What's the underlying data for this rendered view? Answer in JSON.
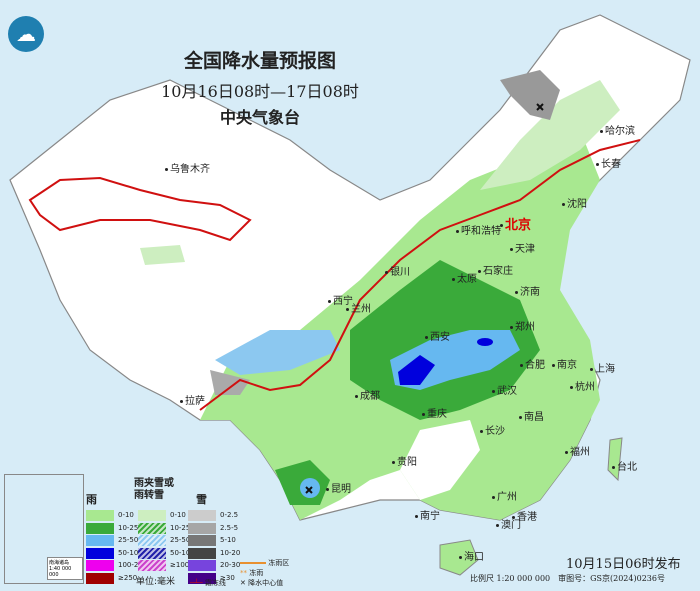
{
  "header": {
    "title": "全国降水量预报图",
    "period": "10月16日08时—17日08时",
    "agency": "中央气象台"
  },
  "logo": {
    "icon": "cma-logo-icon"
  },
  "cities": [
    {
      "name": "乌鲁木齐",
      "capital": false
    },
    {
      "name": "哈尔滨",
      "capital": false
    },
    {
      "name": "长春",
      "capital": false
    },
    {
      "name": "沈阳",
      "capital": false
    },
    {
      "name": "北京",
      "capital": true
    },
    {
      "name": "天津",
      "capital": false
    },
    {
      "name": "呼和浩特",
      "capital": false
    },
    {
      "name": "石家庄",
      "capital": false
    },
    {
      "name": "太原",
      "capital": false
    },
    {
      "name": "银川",
      "capital": false
    },
    {
      "name": "西宁",
      "capital": false
    },
    {
      "name": "兰州",
      "capital": false
    },
    {
      "name": "济南",
      "capital": false
    },
    {
      "name": "郑州",
      "capital": false
    },
    {
      "name": "西安",
      "capital": false
    },
    {
      "name": "南京",
      "capital": false
    },
    {
      "name": "合肥",
      "capital": false
    },
    {
      "name": "上海",
      "capital": false
    },
    {
      "name": "杭州",
      "capital": false
    },
    {
      "name": "武汉",
      "capital": false
    },
    {
      "name": "成都",
      "capital": false
    },
    {
      "name": "重庆",
      "capital": false
    },
    {
      "name": "长沙",
      "capital": false
    },
    {
      "name": "南昌",
      "capital": false
    },
    {
      "name": "拉萨",
      "capital": false
    },
    {
      "name": "贵阳",
      "capital": false
    },
    {
      "name": "昆明",
      "capital": false
    },
    {
      "name": "福州",
      "capital": false
    },
    {
      "name": "台北",
      "capital": false
    },
    {
      "name": "南宁",
      "capital": false
    },
    {
      "name": "广州",
      "capital": false
    },
    {
      "name": "澳门",
      "capital": false
    },
    {
      "name": "香港",
      "capital": false
    },
    {
      "name": "海口",
      "capital": false
    }
  ],
  "legend": {
    "rain": {
      "title": "雨",
      "items": [
        {
          "label": "0-10",
          "color": "#a8e890"
        },
        {
          "label": "10-25",
          "color": "#3aaa3a"
        },
        {
          "label": "25-50",
          "color": "#66b8f0"
        },
        {
          "label": "50-100",
          "color": "#0000dd"
        },
        {
          "label": "100-250",
          "color": "#ee00ee"
        },
        {
          "label": "≥250",
          "color": "#a00000"
        }
      ]
    },
    "mixed": {
      "title": "雨夹雪或雨转雪",
      "items": [
        {
          "label": "0-10",
          "color": "#cdeec0"
        },
        {
          "label": "10-25",
          "color": "#3aaa3a"
        },
        {
          "label": "25-50",
          "color": "#8cc8f0"
        },
        {
          "label": "50-100",
          "color": "#2222aa"
        },
        {
          "label": "≥100",
          "color": "#cc44cc"
        }
      ]
    },
    "snow": {
      "title": "雪",
      "items": [
        {
          "label": "0-2.5",
          "color": "#cccccc"
        },
        {
          "label": "2.5-5",
          "color": "#a6a6a6"
        },
        {
          "label": "5-10",
          "color": "#777777"
        },
        {
          "label": "10-20",
          "color": "#444444"
        },
        {
          "label": "20-30",
          "color": "#7744dd"
        },
        {
          "label": "≥30",
          "color": "#440088"
        }
      ]
    },
    "unit": "单位:毫米",
    "symbols": [
      {
        "label": "冻雨区",
        "icon": "orange-line-icon"
      },
      {
        "label": "冻雨",
        "icon": "double-star-icon"
      },
      {
        "label": "霜冻线",
        "icon": "frost-line-icon"
      },
      {
        "label": "降水中心值",
        "icon": "cross-icon"
      }
    ],
    "inset_scale": "南海诸岛 1:40 000 000"
  },
  "footer": {
    "issued": "10月15日06时发布",
    "scale": "比例尺 1:20 000 000　审图号：GS京(2024)0236号"
  }
}
